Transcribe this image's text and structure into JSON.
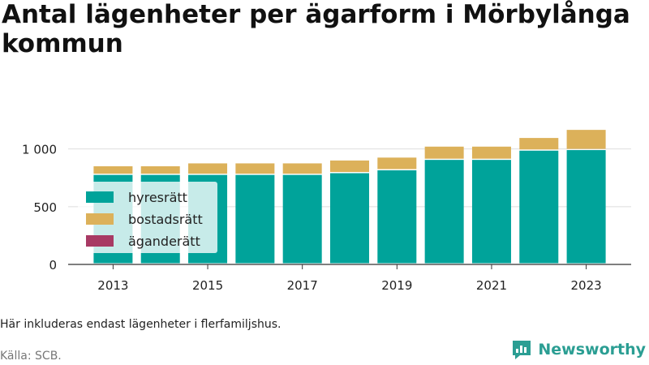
{
  "title": "Antal lägenheter per ägarform i Mörbylånga kommun",
  "note": "Här inkluderas endast lägenheter i flerfamiljshus.",
  "source": "Källa: SCB.",
  "brand": {
    "name": "Newsworthy",
    "icon": "newsworthy-logo-icon",
    "color": "#2b9e93"
  },
  "chart_data": {
    "type": "bar",
    "stacked": true,
    "categories": [
      "2013",
      "2014",
      "2015",
      "2016",
      "2017",
      "2018",
      "2019",
      "2020",
      "2021",
      "2022",
      "2023"
    ],
    "tick_labels": [
      "2013",
      "2015",
      "2017",
      "2019",
      "2021",
      "2023"
    ],
    "y_ticks": [
      {
        "value": 0,
        "label": "0"
      },
      {
        "value": 500,
        "label": "500"
      },
      {
        "value": 1000,
        "label": "1 000"
      }
    ],
    "ylim": [
      0,
      1180
    ],
    "grid": true,
    "legend_position": "left-middle",
    "series": [
      {
        "name": "hyresrätt",
        "color": "#00a39a",
        "values": [
          775,
          775,
          775,
          775,
          775,
          790,
          815,
          905,
          905,
          985,
          990
        ]
      },
      {
        "name": "bostadsrätt",
        "color": "#dcb15a",
        "values": [
          75,
          75,
          100,
          100,
          100,
          110,
          110,
          115,
          115,
          110,
          175
        ]
      },
      {
        "name": "äganderätt",
        "color": "#a83a64",
        "values": [
          0,
          0,
          0,
          0,
          0,
          0,
          0,
          0,
          0,
          0,
          0
        ]
      }
    ]
  }
}
